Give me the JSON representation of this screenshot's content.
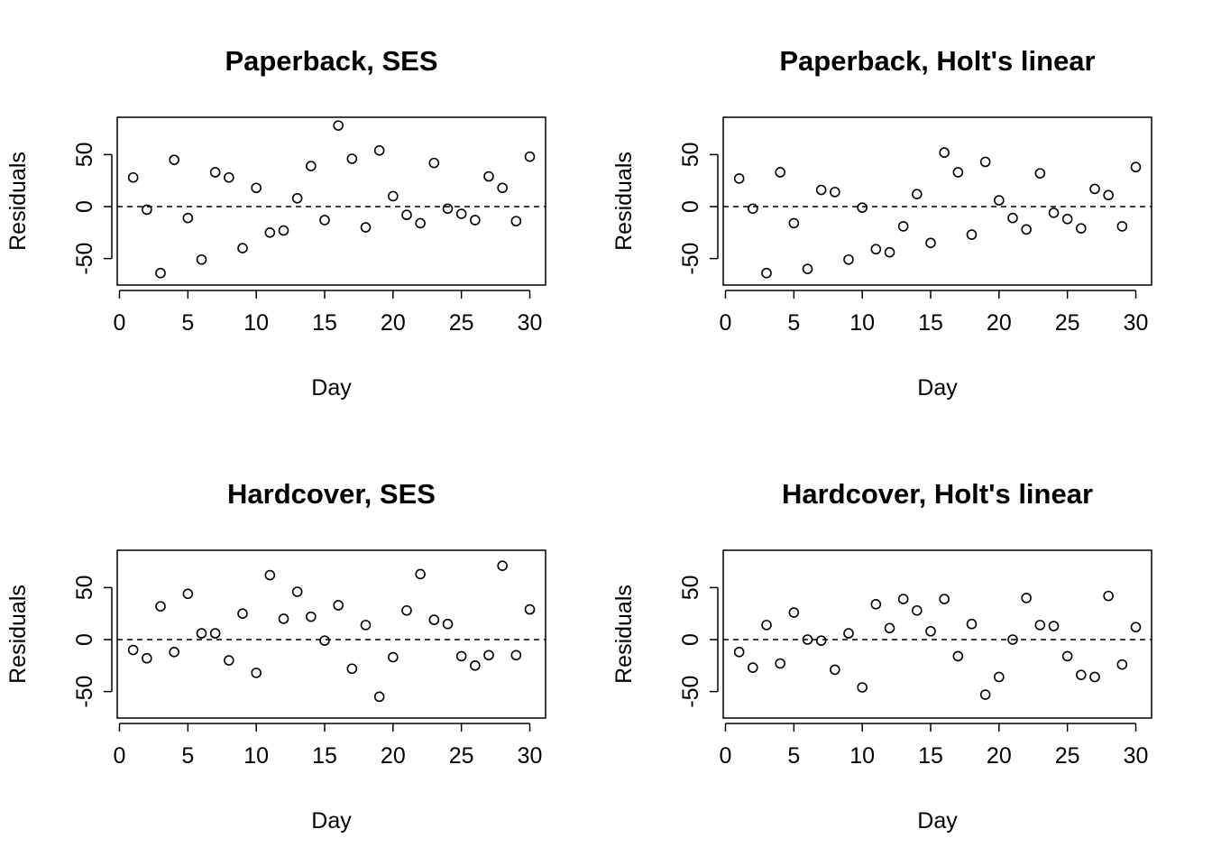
{
  "chart_data": [
    {
      "type": "scatter",
      "title": "Paperback, SES",
      "xlabel": "Day",
      "ylabel": "Residuals",
      "xlim": [
        0,
        30
      ],
      "ylim": [
        -65,
        80
      ],
      "x_ticks": [
        0,
        5,
        10,
        15,
        20,
        25,
        30
      ],
      "y_ticks": [
        -50,
        0,
        50
      ],
      "reference_line": 0,
      "x": [
        1,
        2,
        3,
        4,
        5,
        6,
        7,
        8,
        9,
        10,
        11,
        12,
        13,
        14,
        15,
        16,
        17,
        18,
        19,
        20,
        21,
        22,
        23,
        24,
        25,
        26,
        27,
        28,
        29,
        30
      ],
      "y": [
        28,
        -3,
        -64,
        45,
        -11,
        -51,
        33,
        28,
        -40,
        18,
        -25,
        -23,
        8,
        39,
        -13,
        78,
        46,
        -20,
        54,
        10,
        -8,
        -16,
        42,
        -2,
        -7,
        -13,
        29,
        18,
        -14,
        48
      ]
    },
    {
      "type": "scatter",
      "title": "Paperback, Holt's linear",
      "xlabel": "Day",
      "ylabel": "Residuals",
      "xlim": [
        0,
        30
      ],
      "ylim": [
        -65,
        80
      ],
      "x_ticks": [
        0,
        5,
        10,
        15,
        20,
        25,
        30
      ],
      "y_ticks": [
        -50,
        0,
        50
      ],
      "reference_line": 0,
      "x": [
        1,
        2,
        3,
        4,
        5,
        6,
        7,
        8,
        9,
        10,
        11,
        12,
        13,
        14,
        15,
        16,
        17,
        18,
        19,
        20,
        21,
        22,
        23,
        24,
        25,
        26,
        27,
        28,
        29,
        30
      ],
      "y": [
        27,
        -2,
        -64,
        33,
        -16,
        -60,
        16,
        14,
        -51,
        -1,
        -41,
        -44,
        -19,
        12,
        -35,
        52,
        33,
        -27,
        43,
        6,
        -11,
        -22,
        32,
        -6,
        -12,
        -21,
        17,
        11,
        -19,
        38
      ]
    },
    {
      "type": "scatter",
      "title": "Hardcover, SES",
      "xlabel": "Day",
      "ylabel": "Residuals",
      "xlim": [
        0,
        30
      ],
      "ylim": [
        -65,
        80
      ],
      "x_ticks": [
        0,
        5,
        10,
        15,
        20,
        25,
        30
      ],
      "y_ticks": [
        -50,
        0,
        50
      ],
      "reference_line": 0,
      "x": [
        1,
        2,
        3,
        4,
        5,
        6,
        7,
        8,
        9,
        10,
        11,
        12,
        13,
        14,
        15,
        16,
        17,
        18,
        19,
        20,
        21,
        22,
        23,
        24,
        25,
        26,
        27,
        28,
        29,
        30
      ],
      "y": [
        -10,
        -18,
        32,
        -12,
        44,
        6,
        6,
        -20,
        25,
        -32,
        62,
        20,
        46,
        22,
        -1,
        33,
        -28,
        14,
        -55,
        -17,
        28,
        63,
        19,
        15,
        -16,
        -25,
        -15,
        71,
        -15,
        29
      ]
    },
    {
      "type": "scatter",
      "title": "Hardcover, Holt's linear",
      "xlabel": "Day",
      "ylabel": "Residuals",
      "xlim": [
        0,
        30
      ],
      "ylim": [
        -65,
        80
      ],
      "x_ticks": [
        0,
        5,
        10,
        15,
        20,
        25,
        30
      ],
      "y_ticks": [
        -50,
        0,
        50
      ],
      "reference_line": 0,
      "x": [
        1,
        2,
        3,
        4,
        5,
        6,
        7,
        8,
        9,
        10,
        11,
        12,
        13,
        14,
        15,
        16,
        17,
        18,
        19,
        20,
        21,
        22,
        23,
        24,
        25,
        26,
        27,
        28,
        29,
        30
      ],
      "y": [
        -12,
        -27,
        14,
        -23,
        26,
        0,
        -1,
        -29,
        6,
        -46,
        34,
        11,
        39,
        28,
        8,
        39,
        -16,
        15,
        -53,
        -36,
        0,
        40,
        14,
        13,
        -16,
        -34,
        -36,
        42,
        -24,
        12
      ]
    }
  ]
}
